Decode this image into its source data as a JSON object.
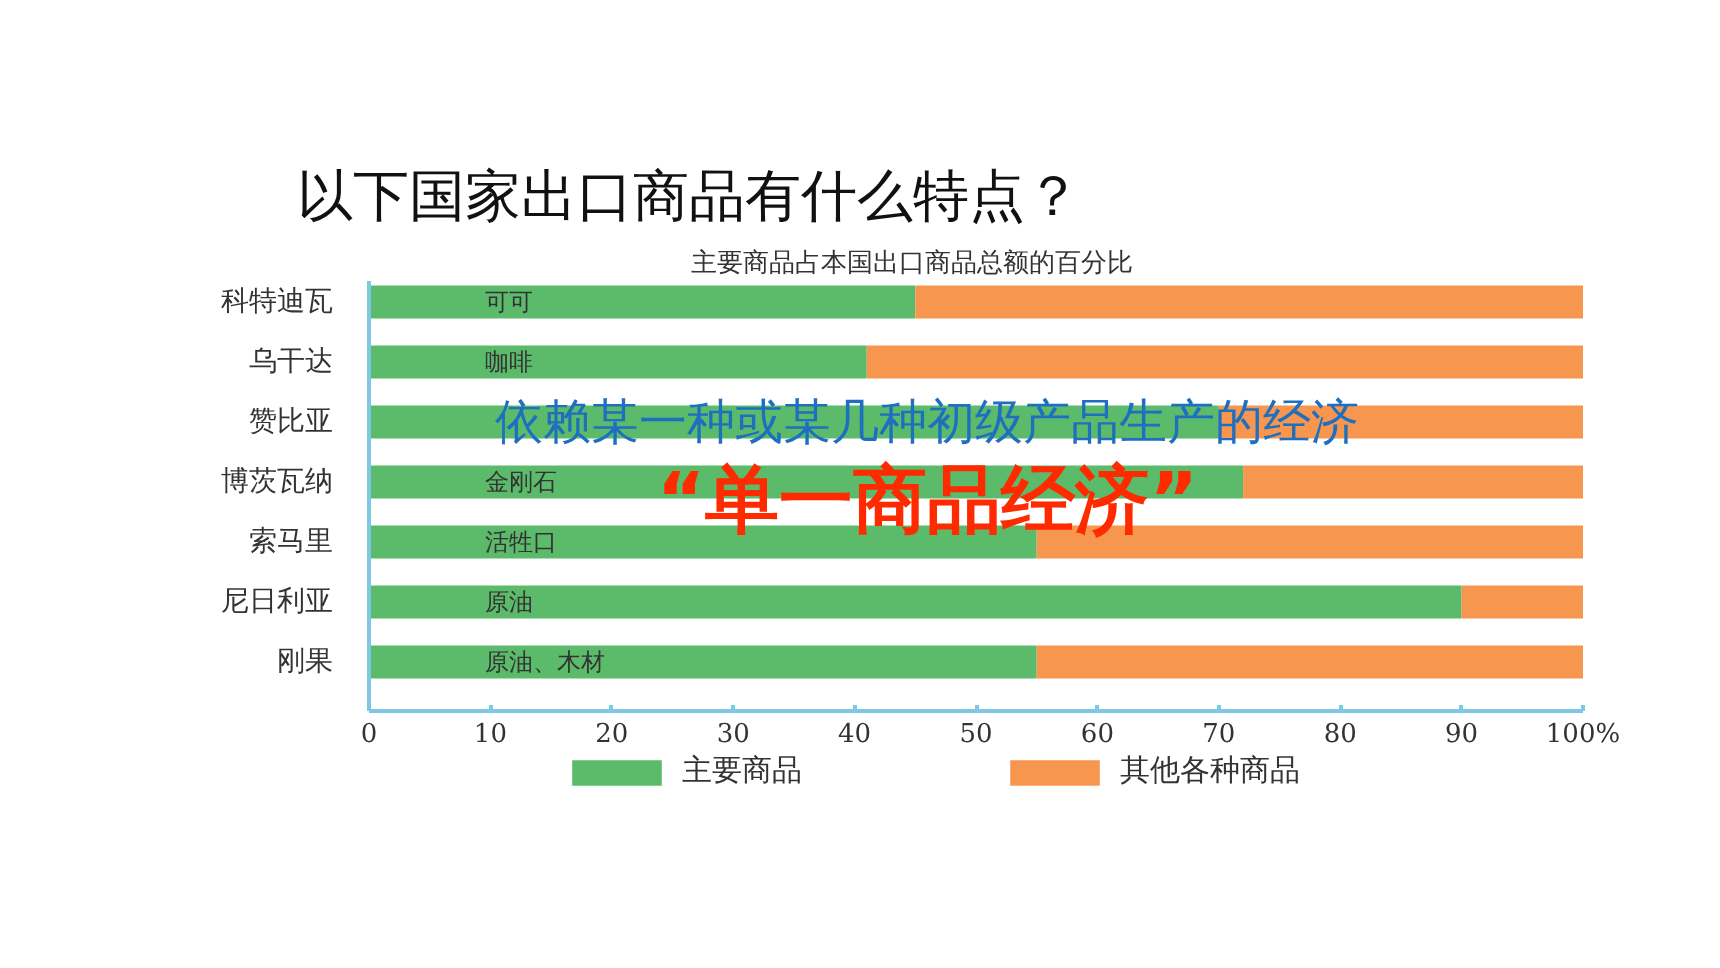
{
  "chart_data": {
    "type": "bar",
    "orientation": "horizontal",
    "stacked": true,
    "title": "以下国家出口商品有什么特点？",
    "subtitle": "主要商品占本国出口商品总额的百分比",
    "categories": [
      "科特迪瓦",
      "乌干达",
      "赞比亚",
      "博茨瓦纳",
      "索马里",
      "尼日利亚",
      "刚果"
    ],
    "series": [
      {
        "name": "主要商品",
        "color": "#5bbb6a",
        "values": [
          45,
          41,
          70,
          72,
          55,
          90,
          55
        ],
        "value_labels": [
          "可可",
          "咖啡",
          null,
          "金刚石",
          "活牲口",
          "原油",
          "原油、木材"
        ]
      },
      {
        "name": "其他各种商品",
        "color": "#f7964f",
        "values": [
          55,
          59,
          30,
          28,
          45,
          10,
          45
        ]
      }
    ],
    "xlim": [
      0,
      100
    ],
    "xticks": [
      0,
      10,
      20,
      30,
      40,
      50,
      60,
      70,
      80,
      90,
      {
        "value": 100,
        "label": "100%"
      }
    ],
    "grid": false,
    "legend": "bottom",
    "annotations": [
      "依赖某一种或某几种初级产品生产的经济",
      "“单一商品经济”"
    ]
  }
}
